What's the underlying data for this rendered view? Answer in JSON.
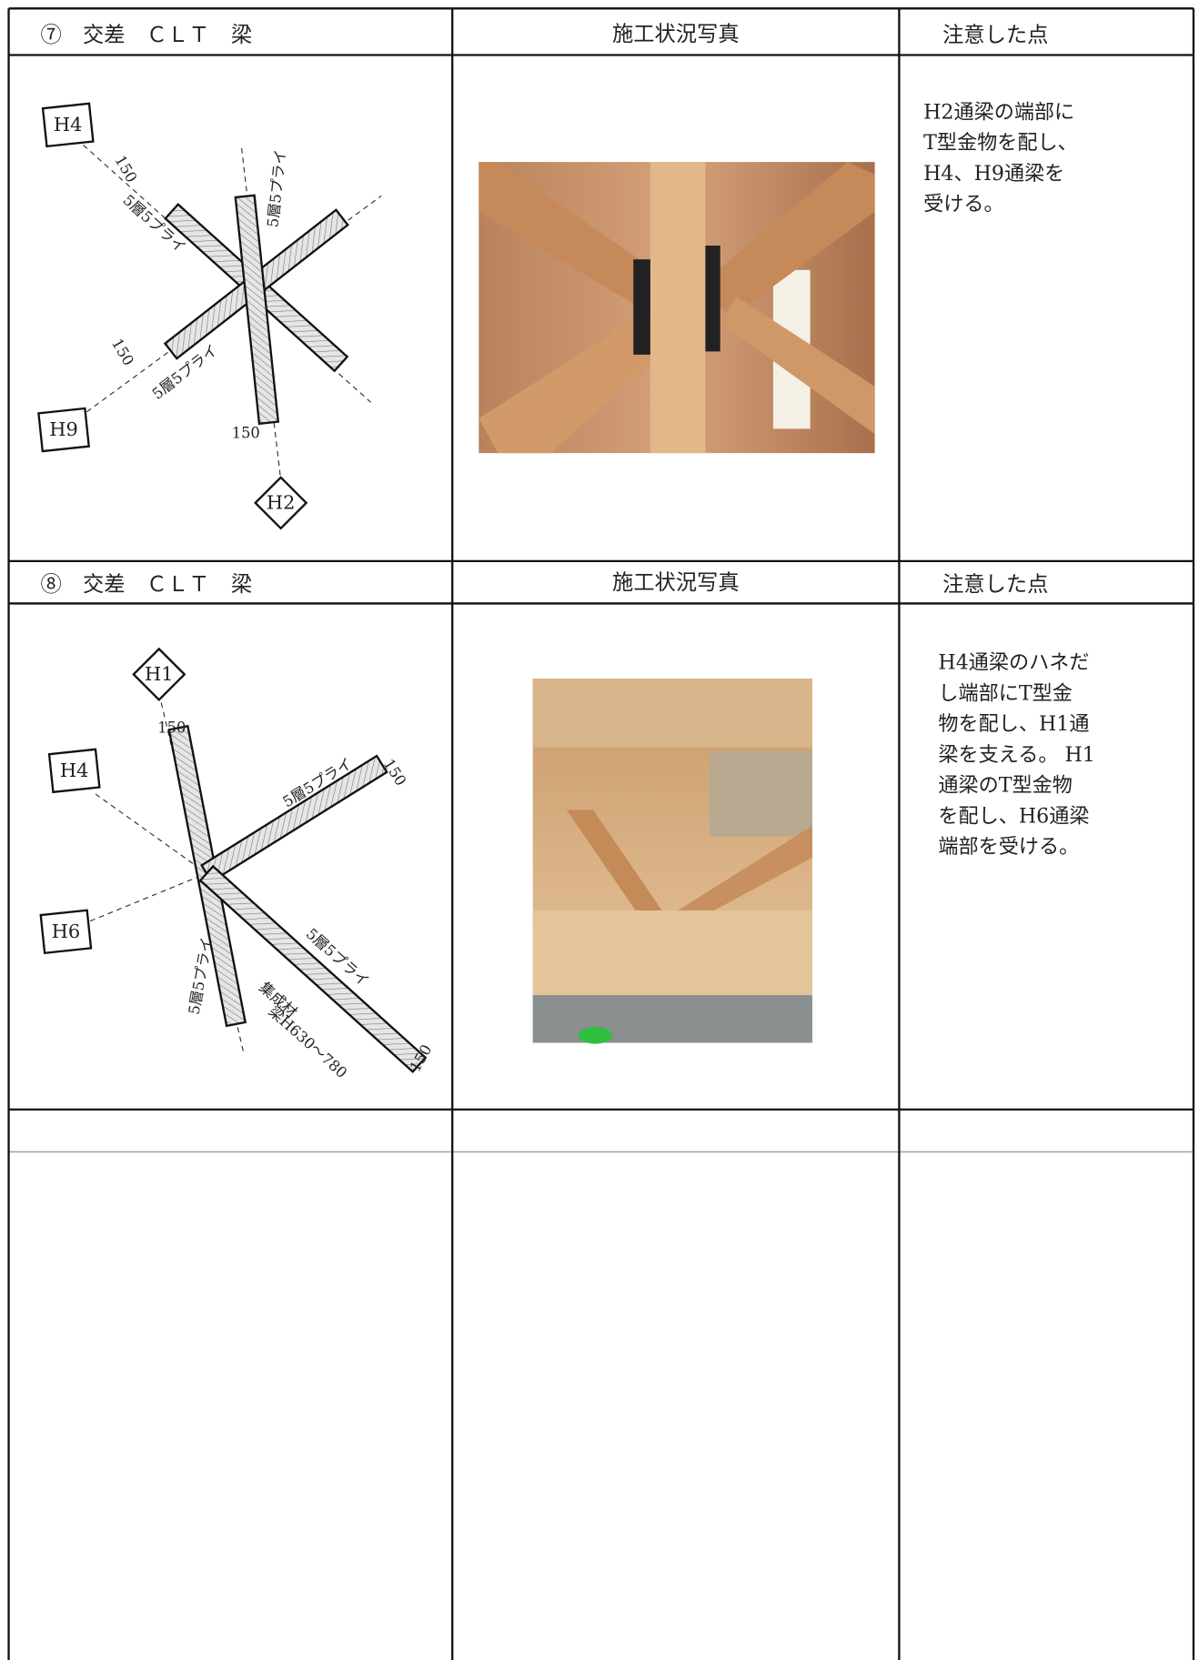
{
  "sections": [
    {
      "title": "⑦　交差　ＣＬＴ　梁",
      "photo_header": "施工状況写真",
      "notes_header": "注意した点",
      "notes": [
        "H2通梁の端部に",
        "T型金物を配し、",
        "H4、H9通梁を",
        "受ける。"
      ],
      "diagram": {
        "labels": [
          "H4",
          "H9",
          "H2"
        ],
        "dimensions": [
          "150",
          "150",
          "150"
        ],
        "plies": [
          "5層5プライ",
          "5層5プライ",
          "5層5プライ"
        ]
      }
    },
    {
      "title": "⑧　交差　ＣＬＴ　梁",
      "photo_header": "施工状況写真",
      "notes_header": "注意した点",
      "notes": [
        "H4通梁のハネだ",
        "し端部にT型金",
        "物を配し、H1通",
        "梁を支える。 H1",
        "通梁のT型金物",
        "を配し、H6通梁",
        "端部を受ける。"
      ],
      "diagram": {
        "labels": [
          "H1",
          "H4",
          "H6"
        ],
        "dimensions": [
          "150",
          "150",
          "150"
        ],
        "plies": [
          "5層5プライ",
          "5層5プライ",
          "5層5プライ"
        ],
        "glulam": [
          "集成材",
          "梁H630～780"
        ]
      }
    }
  ]
}
